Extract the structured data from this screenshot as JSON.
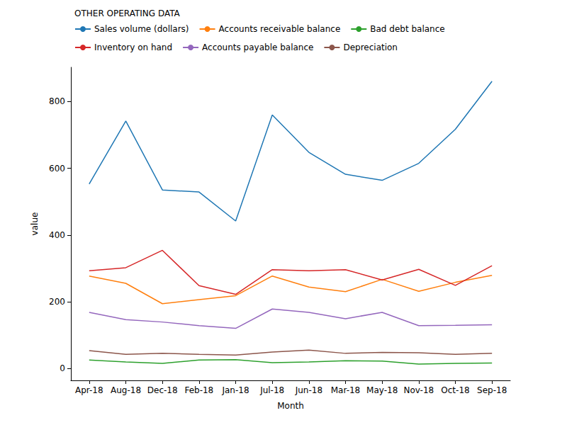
{
  "chart_data": {
    "type": "line",
    "legend_title": "OTHER OPERATING DATA",
    "x_label": "Month",
    "y_label": "value",
    "categories": [
      "Apr-18",
      "Aug-18",
      "Dec-18",
      "Feb-18",
      "Jan-18",
      "Jul-18",
      "Jun-18",
      "Mar-18",
      "May-18",
      "Nov-18",
      "Oct-18",
      "Sep-18"
    ],
    "series": [
      {
        "name": "Sales volume (dollars)",
        "color": "#1f77b4",
        "values": [
          553,
          742,
          535,
          529,
          442,
          760,
          648,
          582,
          564,
          615,
          717,
          861
        ]
      },
      {
        "name": "Accounts receivable balance",
        "color": "#ff7f0e",
        "values": [
          277,
          255,
          194,
          206,
          218,
          277,
          244,
          230,
          267,
          231,
          258,
          279
        ]
      },
      {
        "name": "Bad debt balance",
        "color": "#2ca02c",
        "values": [
          25,
          19,
          15,
          25,
          26,
          17,
          19,
          23,
          22,
          13,
          15,
          16
        ]
      },
      {
        "name": "Inventory on hand",
        "color": "#d62728",
        "values": [
          293,
          302,
          354,
          248,
          222,
          296,
          293,
          296,
          265,
          297,
          249,
          308
        ]
      },
      {
        "name": "Accounts payable balance",
        "color": "#9467bd",
        "values": [
          168,
          146,
          139,
          128,
          120,
          178,
          168,
          149,
          168,
          128,
          129,
          131
        ]
      },
      {
        "name": "Depreciation",
        "color": "#8c564b",
        "values": [
          53,
          42,
          45,
          42,
          40,
          49,
          55,
          45,
          48,
          47,
          42,
          45
        ]
      }
    ],
    "ylim": [
      -36,
      903
    ],
    "yticks": [
      0,
      200,
      400,
      600,
      800
    ],
    "grid": false,
    "legend": "upper left"
  }
}
